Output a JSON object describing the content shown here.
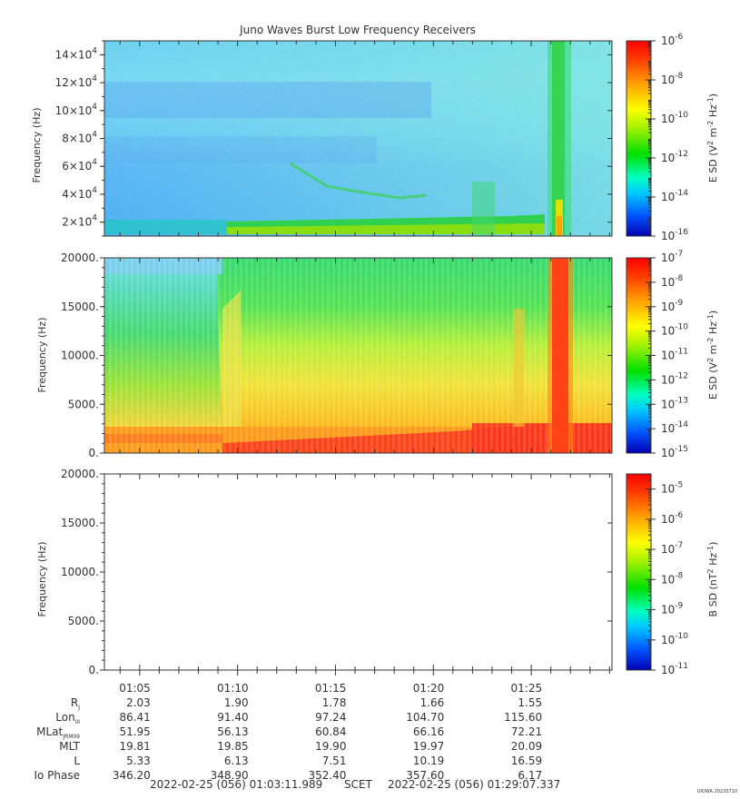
{
  "title": "Juno Waves Burst Low Frequency Receivers",
  "chart_data": [
    {
      "type": "heatmap",
      "panel": 1,
      "ylabel": "Frequency (Hz)",
      "ylim": [
        10000,
        150000
      ],
      "yticks": [
        {
          "value": 20000,
          "mant": "2×10",
          "exp": "4"
        },
        {
          "value": 40000,
          "mant": "4×10",
          "exp": "4"
        },
        {
          "value": 60000,
          "mant": "6×10",
          "exp": "4"
        },
        {
          "value": 80000,
          "mant": "8×10",
          "exp": "4"
        },
        {
          "value": 100000,
          "mant": "10×10",
          "exp": "4"
        },
        {
          "value": 120000,
          "mant": "12×10",
          "exp": "4"
        },
        {
          "value": 140000,
          "mant": "14×10",
          "exp": "4"
        }
      ],
      "colorbar": {
        "label": "E SD (V² m⁻² Hz⁻¹)",
        "log": true,
        "range_exponents": [
          -16,
          -6
        ],
        "ticks": [
          "-6",
          "-8",
          "-10",
          "-12",
          "-14",
          "-16"
        ]
      }
    },
    {
      "type": "heatmap",
      "panel": 2,
      "ylabel": "Frequency (Hz)",
      "ylim": [
        0,
        20000
      ],
      "yticks": [
        "0.",
        "5000.",
        "10000.",
        "15000.",
        "20000."
      ],
      "colorbar": {
        "label": "E SD (V² m⁻² Hz⁻¹)",
        "log": true,
        "range_exponents": [
          -15,
          -7
        ],
        "ticks": [
          "-7",
          "-8",
          "-9",
          "-10",
          "-11",
          "-12",
          "-13",
          "-14",
          "-15"
        ]
      }
    },
    {
      "type": "heatmap",
      "panel": 3,
      "ylabel": "Frequency (Hz)",
      "ylim": [
        0,
        20000
      ],
      "yticks": [
        "0.",
        "5000.",
        "10000.",
        "15000.",
        "20000."
      ],
      "empty": true,
      "colorbar": {
        "label": "B SD (nT² Hz⁻¹)",
        "log": true,
        "range_exponents": [
          -11,
          -4.5
        ],
        "ticks": [
          "-5",
          "-6",
          "-7",
          "-8",
          "-9",
          "-10",
          "-11"
        ]
      }
    }
  ],
  "time_axis": {
    "start": "01:03:11.989",
    "end": "01:29:07.337",
    "labels": [
      "01:05",
      "01:10",
      "01:15",
      "01:20",
      "01:25"
    ]
  },
  "ephemeris": {
    "rows": [
      {
        "name": "R",
        "sub": "J",
        "values": [
          "2.03",
          "1.90",
          "1.78",
          "1.66",
          "1.55"
        ]
      },
      {
        "name": "Lon",
        "sub": "III",
        "values": [
          "86.41",
          "91.40",
          "97.24",
          "104.70",
          "115.60"
        ]
      },
      {
        "name": "MLat",
        "sub": "JRM09",
        "values": [
          "51.95",
          "56.13",
          "60.84",
          "66.16",
          "72.21"
        ]
      },
      {
        "name": "MLT",
        "sub": "",
        "values": [
          "19.81",
          "19.85",
          "19.90",
          "19.97",
          "20.09"
        ]
      },
      {
        "name": "L",
        "sub": "",
        "values": [
          "5.33",
          "6.13",
          "7.51",
          "10.19",
          "16.59"
        ]
      },
      {
        "name": "Io Phase",
        "sub": "",
        "values": [
          "346.20",
          "348.90",
          "352.40",
          "357.60",
          "6.17"
        ]
      }
    ]
  },
  "footer": {
    "start": "2022-02-25 (056) 01:03:11.989",
    "scet": "SCET",
    "end": "2022-02-25 (056) 01:29:07.337",
    "credit": "UIOWA 20220710"
  }
}
